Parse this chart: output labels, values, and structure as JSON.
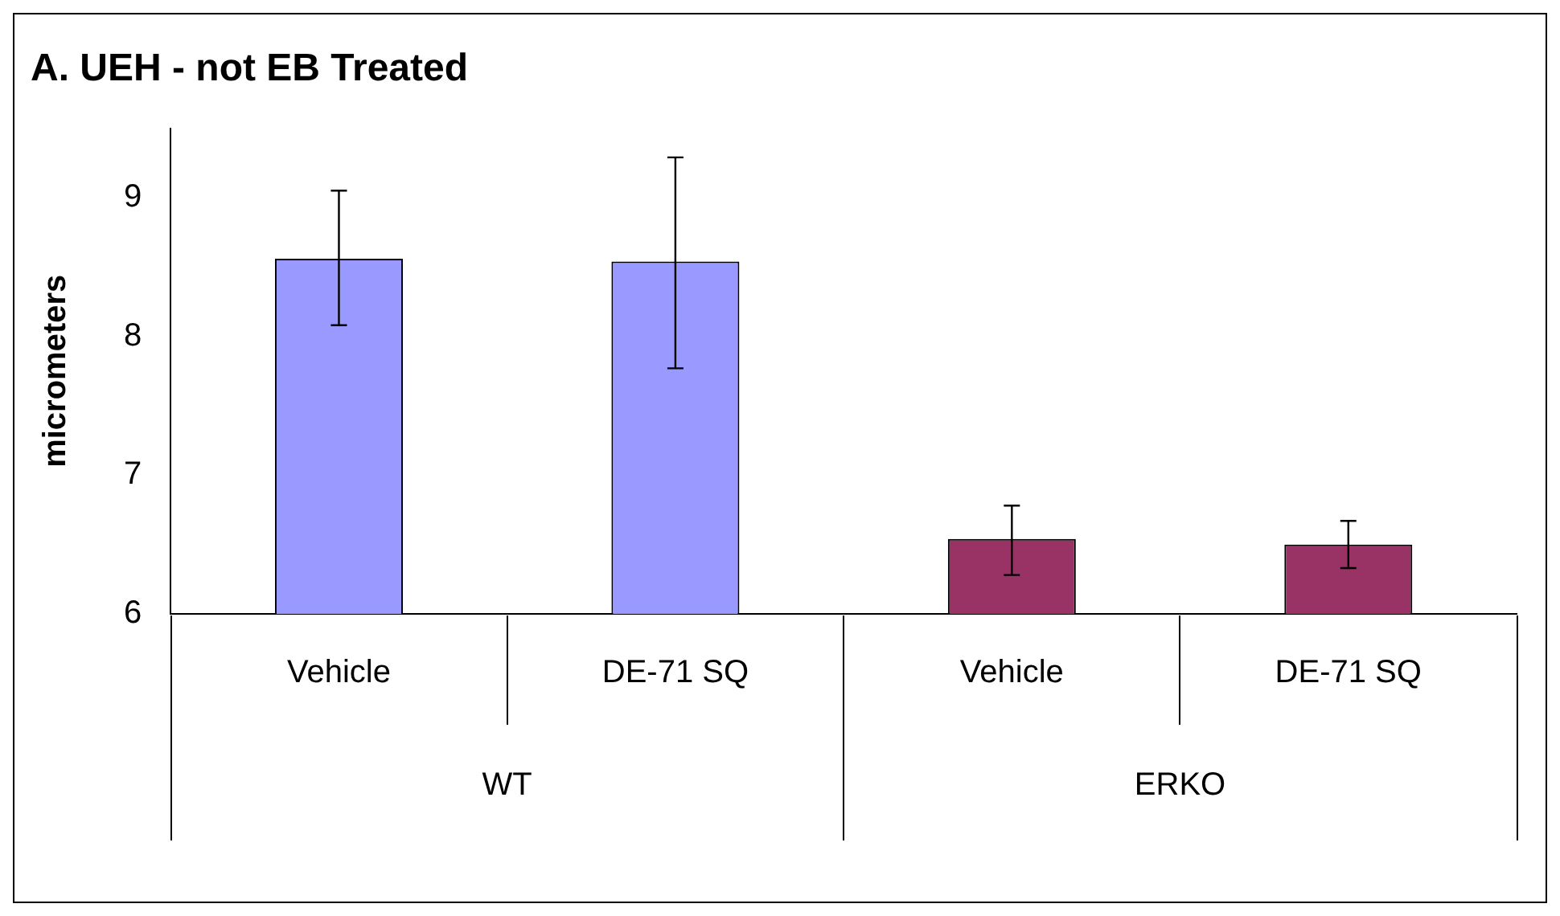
{
  "chart_data": {
    "type": "bar",
    "title": "A. UEH - not EB Treated",
    "ylabel": "micrometers",
    "categories": [
      "Vehicle",
      "DE-71 SQ",
      "Vehicle",
      "DE-71 SQ"
    ],
    "series": [
      {
        "name": "WT",
        "color": "#9999ff",
        "values": [
          8.56,
          8.54,
          null,
          null
        ],
        "errors": [
          [
            8.08,
            9.05
          ],
          [
            7.77,
            9.29
          ],
          null,
          null
        ]
      },
      {
        "name": "ERKO",
        "color": "#993366",
        "values": [
          null,
          null,
          6.54,
          6.5
        ],
        "errors": [
          null,
          null,
          [
            6.28,
            6.78
          ],
          [
            6.33,
            6.67
          ]
        ]
      }
    ],
    "ylim": [
      6,
      9.5
    ],
    "yticks": [
      6,
      7,
      8,
      9
    ],
    "grid": false,
    "legend": false
  }
}
